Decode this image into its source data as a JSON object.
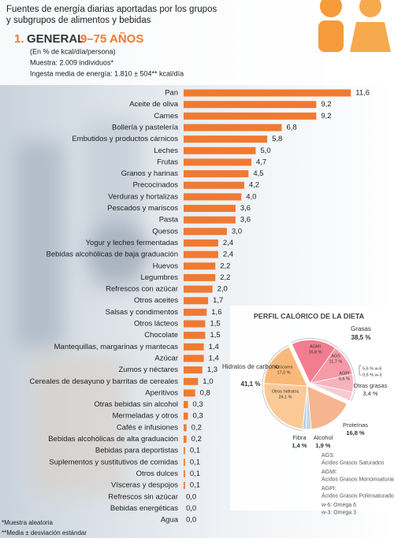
{
  "header": {
    "title_lines": [
      "Fuentes de energía diarias aportadas por los grupos",
      "y subgrupos de alimentos y bebidas"
    ],
    "section_number": "1.",
    "section_title": "GENERAL",
    "section_age": "9–75 AÑOS",
    "info": [
      "(En % de kcal/día/persona)",
      "Muestra: 2.009 individuos*",
      "Ingesta media de energía: 1.810 ± 504** kcal/día"
    ]
  },
  "chart_data": [
    {
      "type": "bar",
      "orientation": "horizontal",
      "color": "#f07a32",
      "categories": [
        "Pan",
        "Aceite de oliva",
        "Carnes",
        "Bollería y pastelería",
        "Embutidos y productos cárnicos",
        "Leches",
        "Frutas",
        "Granos y harinas",
        "Precocinados",
        "Verduras y hortalizas",
        "Pescados y mariscos",
        "Pasta",
        "Quesos",
        "Yogur y leches fermentadas",
        "Bebidas alcohólicas de baja graduación",
        "Huevos",
        "Legumbres",
        "Refrescos con azúcar",
        "Otros aceites",
        "Salsas y condimentos",
        "Otros lácteos",
        "Chocolate",
        "Mantequillas, margarinas y mantecas",
        "Azúcar",
        "Zumos y néctares",
        "Cereales de desayuno y barritas de cereales",
        "Aperitivos",
        "Otras bebidas sin alcohol",
        "Mermeladas y otros",
        "Cafés e infusiones",
        "Bebidas alcohólicas de alta graduación",
        "Bebidas para deportistas",
        "Suplementos y sustitutivos de comidas",
        "Otros dulces",
        "Vísceras y despojos",
        "Refrescos sin azúcar",
        "Bebidas energéticas",
        "Agua"
      ],
      "values": [
        11.6,
        9.2,
        9.2,
        6.8,
        5.8,
        5.0,
        4.7,
        4.5,
        4.2,
        4.0,
        3.6,
        3.6,
        3.0,
        2.4,
        2.4,
        2.2,
        2.2,
        2.0,
        1.7,
        1.6,
        1.5,
        1.5,
        1.4,
        1.4,
        1.3,
        1.0,
        0.8,
        0.3,
        0.3,
        0.2,
        0.2,
        0.1,
        0.1,
        0.1,
        0.1,
        0.0,
        0.0,
        0.0
      ],
      "value_labels": [
        "11,6",
        "9,2",
        "9,2",
        "6,8",
        "5,8",
        "5,0",
        "4,7",
        "4,5",
        "4,2",
        "4,0",
        "3,6",
        "3,6",
        "3,0",
        "2,4",
        "2,4",
        "2,2",
        "2,2",
        "2,0",
        "1,7",
        "1,6",
        "1,5",
        "1,5",
        "1,4",
        "1,4",
        "1,3",
        "1,0",
        "0,8",
        "0,3",
        "0,3",
        "0,2",
        "0,2",
        "0,1",
        "0,1",
        "0,1",
        "0,1",
        "0,0",
        "0,0",
        "0,0"
      ]
    },
    {
      "type": "pie",
      "title": "PERFIL CALÓRICO DE LA DIETA",
      "categories": [
        "AGMI",
        "AGS",
        "AGPI",
        "Otras grasas",
        "Proteínas",
        "Alcohol",
        "Fibra",
        "Otros hidratos",
        "Azúcares"
      ],
      "values": [
        16.8,
        11.7,
        6.6,
        3.4,
        16.8,
        1.9,
        1.4,
        24.1,
        17.0
      ],
      "value_labels": [
        "16,8 %",
        "11,7 %",
        "6,6 %",
        "3,4 %",
        "16,8 %",
        "1,9 %",
        "1,4 %",
        "24,1 %",
        "17,0 %"
      ],
      "colors": [
        "#f27d8f",
        "#f59aa6",
        "#f7b3bb",
        "#f9c9ce",
        "#f5b58f",
        "#c9d4de",
        "#b9d3ea",
        "#fbc996",
        "#f9b97a"
      ],
      "groups": [
        {
          "name": "Grasas",
          "value": 38.5,
          "value_label": "38,5 %"
        },
        {
          "name": "Hidratos de carbono",
          "value": 41.1,
          "value_label": "41,1 %"
        }
      ],
      "omega": [
        "5,6 % w-6",
        "0,6 % w-3"
      ]
    }
  ],
  "notes": [
    "AGS:",
    "Ácidos Grasos Saturados",
    "AGMI:",
    "Ácidos Grasos Monoinsaturados",
    "AGPI:",
    "Ácidos Grasos Poliinsaturados",
    "w-6: Omega 6",
    "w-3: Omega 3"
  ],
  "footnotes": [
    "*Muestra aleatoria",
    "**Media ± desviación estándar"
  ]
}
